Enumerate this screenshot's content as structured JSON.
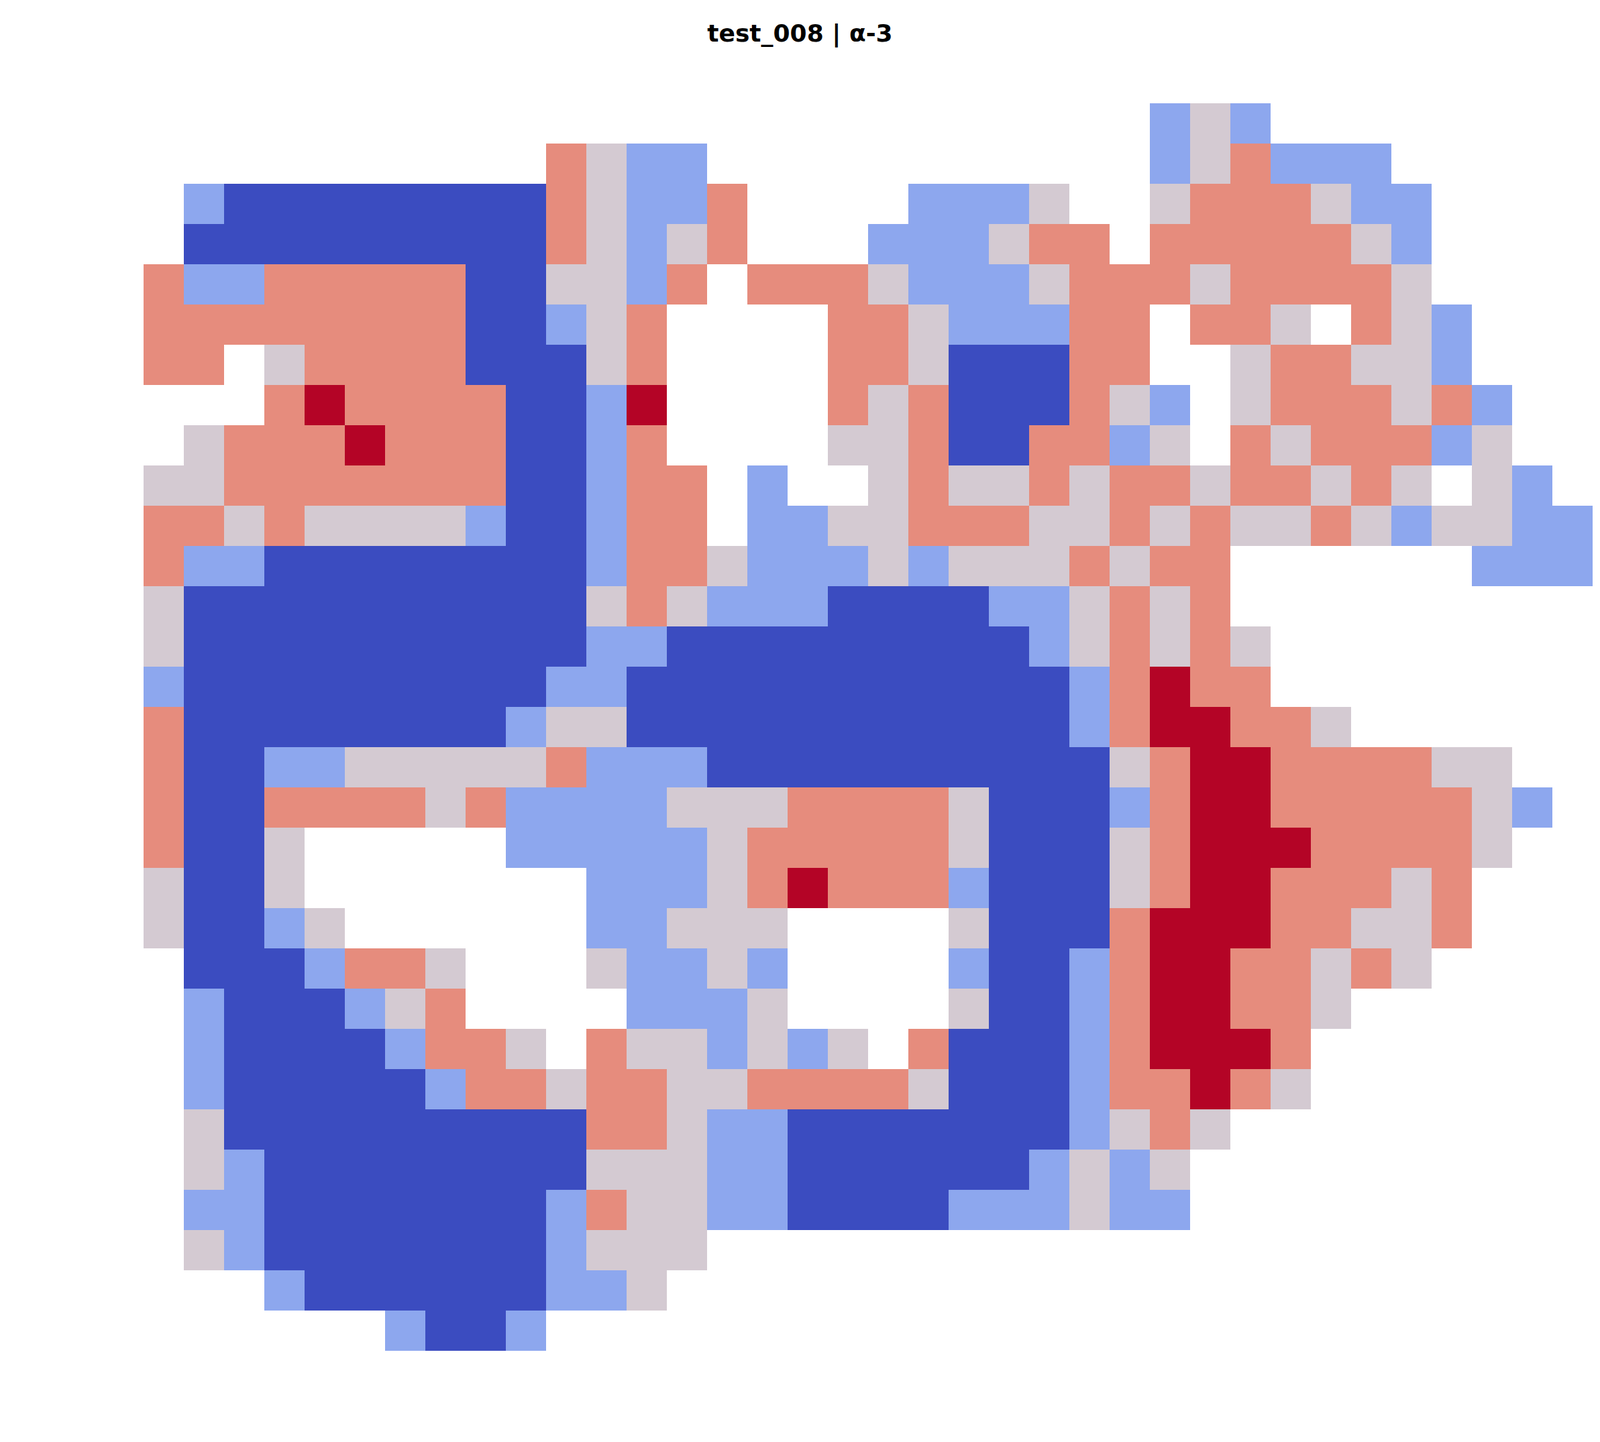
{
  "chart_data": {
    "type": "heatmap",
    "title": "test_008 | α-3",
    "tick_labels": false,
    "zlim": [
      0,
      4
    ],
    "cells": [
      [
        null,
        null,
        null,
        null,
        null,
        null,
        null,
        null,
        null,
        null,
        null,
        null,
        null,
        null,
        null,
        null,
        null,
        null,
        null,
        null,
        null,
        null,
        null,
        null,
        null,
        1,
        2,
        1,
        null,
        null,
        null,
        null,
        null,
        null,
        null,
        null
      ],
      [
        null,
        null,
        null,
        null,
        null,
        null,
        null,
        null,
        null,
        null,
        3,
        2,
        1,
        1,
        null,
        null,
        null,
        null,
        null,
        null,
        null,
        null,
        null,
        null,
        null,
        1,
        2,
        3,
        1,
        1,
        1,
        null,
        null,
        null,
        null,
        null
      ],
      [
        null,
        1,
        0,
        0,
        0,
        0,
        0,
        0,
        0,
        0,
        3,
        2,
        1,
        1,
        3,
        null,
        null,
        null,
        null,
        1,
        1,
        1,
        2,
        null,
        null,
        2,
        3,
        3,
        3,
        2,
        1,
        1,
        null,
        null,
        null,
        null
      ],
      [
        null,
        0,
        0,
        0,
        0,
        0,
        0,
        0,
        0,
        0,
        3,
        2,
        1,
        2,
        3,
        null,
        null,
        null,
        1,
        1,
        1,
        2,
        3,
        3,
        null,
        3,
        3,
        3,
        3,
        3,
        2,
        1,
        null,
        null,
        null,
        null
      ],
      [
        3,
        1,
        1,
        3,
        3,
        3,
        3,
        3,
        0,
        0,
        2,
        2,
        1,
        3,
        null,
        3,
        3,
        3,
        2,
        1,
        1,
        1,
        2,
        3,
        3,
        3,
        2,
        3,
        3,
        3,
        3,
        2,
        null,
        null,
        null,
        null
      ],
      [
        3,
        3,
        3,
        3,
        3,
        3,
        3,
        3,
        0,
        0,
        1,
        2,
        3,
        null,
        null,
        null,
        null,
        3,
        3,
        2,
        1,
        1,
        1,
        3,
        3,
        null,
        3,
        3,
        2,
        null,
        3,
        2,
        1,
        null,
        null,
        null
      ],
      [
        3,
        3,
        null,
        2,
        3,
        3,
        3,
        3,
        0,
        0,
        0,
        2,
        3,
        null,
        null,
        null,
        null,
        3,
        3,
        2,
        0,
        0,
        0,
        3,
        3,
        null,
        null,
        2,
        3,
        3,
        2,
        2,
        1,
        null,
        null,
        null
      ],
      [
        null,
        null,
        null,
        3,
        4,
        3,
        3,
        3,
        3,
        0,
        0,
        1,
        4,
        null,
        null,
        null,
        null,
        3,
        2,
        3,
        0,
        0,
        0,
        3,
        2,
        1,
        null,
        2,
        3,
        3,
        3,
        2,
        3,
        1,
        null,
        null
      ],
      [
        null,
        2,
        3,
        3,
        3,
        4,
        3,
        3,
        3,
        0,
        0,
        1,
        3,
        null,
        null,
        null,
        null,
        2,
        2,
        3,
        0,
        0,
        3,
        3,
        1,
        2,
        null,
        3,
        2,
        3,
        3,
        3,
        1,
        2,
        null,
        null
      ],
      [
        2,
        2,
        3,
        3,
        3,
        3,
        3,
        3,
        3,
        0,
        0,
        1,
        3,
        3,
        null,
        1,
        null,
        null,
        2,
        3,
        2,
        2,
        3,
        2,
        3,
        3,
        2,
        3,
        3,
        2,
        3,
        2,
        null,
        2,
        1,
        null
      ],
      [
        3,
        3,
        2,
        3,
        2,
        2,
        2,
        2,
        1,
        0,
        0,
        1,
        3,
        3,
        null,
        1,
        1,
        2,
        2,
        3,
        3,
        3,
        2,
        2,
        3,
        2,
        3,
        2,
        2,
        3,
        2,
        1,
        2,
        2,
        1,
        1
      ],
      [
        3,
        1,
        1,
        0,
        0,
        0,
        0,
        0,
        0,
        0,
        0,
        1,
        3,
        3,
        2,
        1,
        1,
        1,
        2,
        1,
        2,
        2,
        2,
        3,
        2,
        3,
        3,
        null,
        null,
        null,
        null,
        null,
        null,
        1,
        1,
        1
      ],
      [
        2,
        0,
        0,
        0,
        0,
        0,
        0,
        0,
        0,
        0,
        0,
        2,
        3,
        2,
        1,
        1,
        1,
        0,
        0,
        0,
        0,
        1,
        1,
        2,
        3,
        2,
        3,
        null,
        null,
        null,
        null,
        null,
        null,
        null,
        null,
        null
      ],
      [
        2,
        0,
        0,
        0,
        0,
        0,
        0,
        0,
        0,
        0,
        0,
        1,
        1,
        0,
        0,
        0,
        0,
        0,
        0,
        0,
        0,
        0,
        1,
        2,
        3,
        2,
        3,
        2,
        null,
        null,
        null,
        null,
        null,
        null,
        null,
        null
      ],
      [
        1,
        0,
        0,
        0,
        0,
        0,
        0,
        0,
        0,
        0,
        1,
        1,
        0,
        0,
        0,
        0,
        0,
        0,
        0,
        0,
        0,
        0,
        0,
        1,
        3,
        4,
        3,
        3,
        null,
        null,
        null,
        null,
        null,
        null,
        null,
        null
      ],
      [
        3,
        0,
        0,
        0,
        0,
        0,
        0,
        0,
        0,
        1,
        2,
        2,
        0,
        0,
        0,
        0,
        0,
        0,
        0,
        0,
        0,
        0,
        0,
        1,
        3,
        4,
        4,
        3,
        3,
        2,
        null,
        null,
        null,
        null,
        null,
        null
      ],
      [
        3,
        0,
        0,
        1,
        1,
        2,
        2,
        2,
        2,
        2,
        3,
        1,
        1,
        1,
        0,
        0,
        0,
        0,
        0,
        0,
        0,
        0,
        0,
        0,
        2,
        3,
        4,
        4,
        3,
        3,
        3,
        3,
        2,
        2,
        null,
        null
      ],
      [
        3,
        0,
        0,
        3,
        3,
        3,
        3,
        2,
        3,
        1,
        1,
        1,
        1,
        2,
        2,
        2,
        3,
        3,
        3,
        3,
        2,
        0,
        0,
        0,
        1,
        3,
        4,
        4,
        3,
        3,
        3,
        3,
        3,
        2,
        1,
        null
      ],
      [
        3,
        0,
        0,
        2,
        null,
        null,
        null,
        null,
        null,
        1,
        1,
        1,
        1,
        1,
        2,
        3,
        3,
        3,
        3,
        3,
        2,
        0,
        0,
        0,
        2,
        3,
        4,
        4,
        4,
        3,
        3,
        3,
        3,
        2,
        null,
        null
      ],
      [
        2,
        0,
        0,
        2,
        null,
        null,
        null,
        null,
        null,
        null,
        null,
        1,
        1,
        1,
        2,
        3,
        4,
        3,
        3,
        3,
        1,
        0,
        0,
        0,
        2,
        3,
        4,
        4,
        3,
        3,
        3,
        2,
        3,
        null,
        null,
        null
      ],
      [
        2,
        0,
        0,
        1,
        2,
        null,
        null,
        null,
        null,
        null,
        null,
        1,
        1,
        2,
        2,
        2,
        null,
        null,
        null,
        null,
        2,
        0,
        0,
        0,
        3,
        4,
        4,
        4,
        3,
        3,
        2,
        2,
        3,
        null,
        null,
        null
      ],
      [
        null,
        0,
        0,
        0,
        1,
        3,
        3,
        2,
        null,
        null,
        null,
        2,
        1,
        1,
        2,
        1,
        null,
        null,
        null,
        null,
        1,
        0,
        0,
        1,
        3,
        4,
        4,
        3,
        3,
        2,
        3,
        2,
        null,
        null,
        null,
        null
      ],
      [
        null,
        1,
        0,
        0,
        0,
        1,
        2,
        3,
        null,
        null,
        null,
        null,
        1,
        1,
        1,
        2,
        null,
        null,
        null,
        null,
        2,
        0,
        0,
        1,
        3,
        4,
        4,
        3,
        3,
        2,
        null,
        null,
        null,
        null,
        null,
        null
      ],
      [
        null,
        1,
        0,
        0,
        0,
        0,
        1,
        3,
        3,
        2,
        null,
        3,
        2,
        2,
        1,
        2,
        1,
        2,
        null,
        3,
        0,
        0,
        0,
        1,
        3,
        4,
        4,
        4,
        3,
        null,
        null,
        null,
        null,
        null,
        null,
        null
      ],
      [
        null,
        1,
        0,
        0,
        0,
        0,
        0,
        1,
        3,
        3,
        2,
        3,
        3,
        2,
        2,
        3,
        3,
        3,
        3,
        2,
        0,
        0,
        0,
        1,
        3,
        3,
        4,
        3,
        2,
        null,
        null,
        null,
        null,
        null,
        null,
        null
      ],
      [
        null,
        2,
        0,
        0,
        0,
        0,
        0,
        0,
        0,
        0,
        0,
        3,
        3,
        2,
        1,
        1,
        0,
        0,
        0,
        0,
        0,
        0,
        0,
        1,
        2,
        3,
        2,
        null,
        null,
        null,
        null,
        null,
        null,
        null,
        null,
        null
      ],
      [
        null,
        2,
        1,
        0,
        0,
        0,
        0,
        0,
        0,
        0,
        0,
        2,
        2,
        2,
        1,
        1,
        0,
        0,
        0,
        0,
        0,
        0,
        1,
        2,
        1,
        2,
        null,
        null,
        null,
        null,
        null,
        null,
        null,
        null,
        null,
        null
      ],
      [
        null,
        1,
        1,
        0,
        0,
        0,
        0,
        0,
        0,
        0,
        1,
        3,
        2,
        2,
        1,
        1,
        0,
        0,
        0,
        0,
        1,
        1,
        1,
        2,
        1,
        1,
        null,
        null,
        null,
        null,
        null,
        null,
        null,
        null,
        null,
        null
      ],
      [
        null,
        2,
        1,
        0,
        0,
        0,
        0,
        0,
        0,
        0,
        1,
        2,
        2,
        2,
        null,
        null,
        null,
        null,
        null,
        null,
        null,
        null,
        null,
        null,
        null,
        null,
        null,
        null,
        null,
        null,
        null,
        null,
        null,
        null,
        null,
        null
      ],
      [
        null,
        null,
        null,
        1,
        0,
        0,
        0,
        0,
        0,
        0,
        1,
        1,
        2,
        null,
        null,
        null,
        null,
        null,
        null,
        null,
        null,
        null,
        null,
        null,
        null,
        null,
        null,
        null,
        null,
        null,
        null,
        null,
        null,
        null,
        null,
        null
      ],
      [
        null,
        null,
        null,
        null,
        null,
        null,
        1,
        0,
        0,
        1,
        null,
        null,
        null,
        null,
        null,
        null,
        null,
        null,
        null,
        null,
        null,
        null,
        null,
        null,
        null,
        null,
        null,
        null,
        null,
        null,
        null,
        null,
        null,
        null,
        null,
        null
      ]
    ]
  }
}
